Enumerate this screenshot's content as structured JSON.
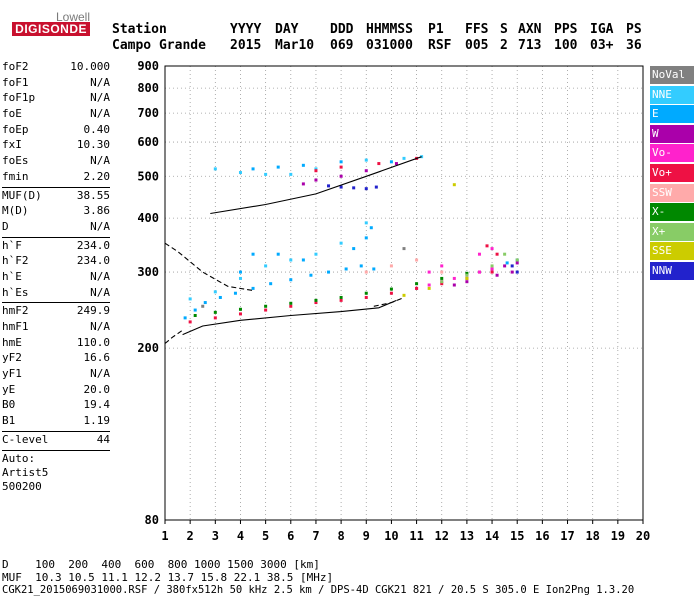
{
  "logo": {
    "line1": "Lowell",
    "line2": "DIGISONDE"
  },
  "header": {
    "labels": [
      "Station",
      "YYYY",
      "DAY",
      "DDD",
      "HHMMSS",
      "P1",
      "FFS",
      "S",
      "AXN",
      "PPS",
      "IGA",
      "PS"
    ],
    "values": [
      "Campo Grande",
      "2015",
      "Mar10",
      "069",
      "031000",
      "RSF",
      "005",
      "2",
      "713",
      "100",
      "03+",
      "36"
    ]
  },
  "params": [
    [
      {
        "label": "foF2",
        "value": "10.000"
      },
      {
        "label": "foF1",
        "value": "N/A"
      },
      {
        "label": "foF1p",
        "value": "N/A"
      },
      {
        "label": "foE",
        "value": "N/A"
      },
      {
        "label": "foEp",
        "value": "0.40"
      },
      {
        "label": "fxI",
        "value": "10.30"
      },
      {
        "label": "foEs",
        "value": "N/A"
      },
      {
        "label": "fmin",
        "value": "2.20"
      }
    ],
    [
      {
        "label": "MUF(D)",
        "value": "38.55"
      },
      {
        "label": "M(D)",
        "value": "3.86"
      },
      {
        "label": "D",
        "value": "N/A"
      }
    ],
    [
      {
        "label": "h`F",
        "value": "234.0"
      },
      {
        "label": "h`F2",
        "value": "234.0"
      },
      {
        "label": "h`E",
        "value": "N/A"
      },
      {
        "label": "h`Es",
        "value": "N/A"
      }
    ],
    [
      {
        "label": "hmF2",
        "value": "249.9"
      },
      {
        "label": "hmF1",
        "value": "N/A"
      },
      {
        "label": "hmE",
        "value": "110.0"
      },
      {
        "label": "yF2",
        "value": "16.6"
      },
      {
        "label": "yF1",
        "value": "N/A"
      },
      {
        "label": "yE",
        "value": "20.0"
      },
      {
        "label": "B0",
        "value": "19.4"
      },
      {
        "label": "B1",
        "value": "1.19"
      }
    ],
    [
      {
        "label": "C-level",
        "value": "44"
      }
    ]
  ],
  "auto": [
    "Auto:",
    "Artist5",
    "500200"
  ],
  "legend": [
    {
      "label": "NoVal",
      "color": "#808080"
    },
    {
      "label": "NNE",
      "color": "#33ccff"
    },
    {
      "label": "E",
      "color": "#00aaff"
    },
    {
      "label": "W",
      "color": "#aa00aa"
    },
    {
      "label": "Vo-",
      "color": "#ff22cc"
    },
    {
      "label": "Vo+",
      "color": "#ee1144"
    },
    {
      "label": "SSW",
      "color": "#ffaaaa"
    },
    {
      "label": "X-",
      "color": "#008800"
    },
    {
      "label": "X+",
      "color": "#88cc66"
    },
    {
      "label": "SSE",
      "color": "#cccc00"
    },
    {
      "label": "NNW",
      "color": "#2222cc"
    }
  ],
  "bottom": {
    "line1": "D    100  200  400  600  800 1000 1500 3000 [km]",
    "line2": "MUF  10.3 10.5 11.1 12.2 13.7 15.8 22.1 38.5 [MHz]",
    "line3": "CGK21_2015069031000.RSF / 380fx512h 50 kHz 2.5 km / DPS-4D CGK21 821 / 20.5 S 305.0 E Ion2Png 1.3.20"
  },
  "chart_data": {
    "type": "scatter",
    "title": "",
    "xlabel": "",
    "ylabel": "",
    "xlim": [
      1,
      20
    ],
    "ylim": [
      80,
      900
    ],
    "yscale": "log",
    "x_ticks": [
      1,
      2,
      3,
      4,
      5,
      6,
      7,
      8,
      9,
      10,
      11,
      12,
      13,
      14,
      15,
      16,
      17,
      18,
      19,
      20
    ],
    "y_ticks": [
      80,
      200,
      300,
      400,
      500,
      600,
      700,
      800,
      900
    ],
    "grid": true,
    "legend_position": "right",
    "series": [
      {
        "name": "E",
        "color": "#00aaff",
        "points": [
          [
            1.8,
            235
          ],
          [
            2.2,
            245
          ],
          [
            2.6,
            255
          ],
          [
            3.2,
            262
          ],
          [
            3.8,
            268
          ],
          [
            4.5,
            275
          ],
          [
            5.2,
            282
          ],
          [
            6,
            288
          ],
          [
            6.8,
            295
          ],
          [
            7.5,
            300
          ],
          [
            8.2,
            305
          ],
          [
            8.8,
            310
          ],
          [
            9.3,
            305
          ],
          [
            4,
            300
          ],
          [
            4.5,
            330
          ],
          [
            5.5,
            330
          ],
          [
            6.5,
            320
          ],
          [
            8.5,
            340
          ],
          [
            9,
            360
          ],
          [
            9.2,
            380
          ],
          [
            4.5,
            520
          ],
          [
            5.5,
            525
          ],
          [
            6.5,
            530
          ],
          [
            8,
            540
          ],
          [
            10,
            540
          ],
          [
            14.6,
            315
          ],
          [
            15,
            320
          ]
        ]
      },
      {
        "name": "NNE",
        "color": "#33ccff",
        "points": [
          [
            2,
            260
          ],
          [
            3,
            270
          ],
          [
            4,
            290
          ],
          [
            5,
            310
          ],
          [
            6,
            320
          ],
          [
            7,
            330
          ],
          [
            8,
            350
          ],
          [
            9,
            390
          ],
          [
            3,
            520
          ],
          [
            4,
            510
          ],
          [
            5,
            505
          ],
          [
            6,
            505
          ],
          [
            7,
            520
          ],
          [
            9,
            545
          ],
          [
            10.5,
            550
          ],
          [
            11.2,
            555
          ]
        ]
      },
      {
        "name": "W",
        "color": "#aa00aa",
        "points": [
          [
            13.5,
            300
          ],
          [
            14,
            305
          ],
          [
            14.5,
            310
          ],
          [
            15,
            315
          ],
          [
            14.2,
            295
          ],
          [
            14.8,
            300
          ],
          [
            13,
            285
          ],
          [
            12.5,
            280
          ],
          [
            6.5,
            480
          ],
          [
            7,
            490
          ],
          [
            8,
            500
          ],
          [
            9,
            515
          ],
          [
            10.2,
            535
          ]
        ]
      },
      {
        "name": "Vo-",
        "color": "#ff22cc",
        "points": [
          [
            11,
            275
          ],
          [
            11.5,
            280
          ],
          [
            12,
            285
          ],
          [
            12.5,
            290
          ],
          [
            13,
            295
          ],
          [
            13.5,
            300
          ],
          [
            14,
            305
          ],
          [
            11.5,
            300
          ],
          [
            12,
            310
          ],
          [
            13.5,
            330
          ],
          [
            14,
            340
          ]
        ]
      },
      {
        "name": "Vo+",
        "color": "#ee1144",
        "points": [
          [
            2,
            230
          ],
          [
            3,
            235
          ],
          [
            4,
            240
          ],
          [
            5,
            245
          ],
          [
            6,
            250
          ],
          [
            7,
            255
          ],
          [
            8,
            258
          ],
          [
            9,
            262
          ],
          [
            10,
            268
          ],
          [
            11,
            275
          ],
          [
            12,
            282
          ],
          [
            13,
            290
          ],
          [
            14,
            300
          ],
          [
            14.2,
            330
          ],
          [
            13.8,
            345
          ],
          [
            7,
            515
          ],
          [
            8,
            525
          ],
          [
            9.5,
            535
          ],
          [
            11,
            550
          ]
        ]
      },
      {
        "name": "SSW",
        "color": "#ffaaaa",
        "points": [
          [
            9,
            300
          ],
          [
            10,
            310
          ],
          [
            11,
            320
          ],
          [
            12,
            300
          ]
        ]
      },
      {
        "name": "X-",
        "color": "#008800",
        "points": [
          [
            2.2,
            238
          ],
          [
            3,
            242
          ],
          [
            4,
            246
          ],
          [
            5,
            250
          ],
          [
            6,
            254
          ],
          [
            7,
            258
          ],
          [
            8,
            262
          ],
          [
            9,
            268
          ],
          [
            10,
            274
          ],
          [
            11,
            282
          ],
          [
            12,
            290
          ],
          [
            13,
            298
          ]
        ]
      },
      {
        "name": "X+",
        "color": "#88cc66",
        "points": [
          [
            12,
            285
          ],
          [
            13,
            295
          ],
          [
            14,
            310
          ],
          [
            15,
            320
          ],
          [
            14.5,
            330
          ]
        ]
      },
      {
        "name": "SSE",
        "color": "#cccc00",
        "points": [
          [
            10.5,
            265
          ],
          [
            11.5,
            275
          ],
          [
            12.5,
            478
          ],
          [
            13,
            290
          ]
        ]
      },
      {
        "name": "NNW",
        "color": "#2222cc",
        "points": [
          [
            7.5,
            475
          ],
          [
            8,
            472
          ],
          [
            8.5,
            470
          ],
          [
            9,
            468
          ],
          [
            9.4,
            472
          ],
          [
            15,
            300
          ],
          [
            14.8,
            310
          ]
        ]
      },
      {
        "name": "NoVal",
        "color": "#808080",
        "points": [
          [
            2.5,
            250
          ],
          [
            10.5,
            340
          ]
        ]
      }
    ],
    "traces": [
      {
        "name": "virtual-height-trace",
        "color": "#000000",
        "style": "solid",
        "points": [
          [
            1.7,
            215
          ],
          [
            2.5,
            225
          ],
          [
            4,
            232
          ],
          [
            6,
            238
          ],
          [
            8,
            243
          ],
          [
            9.5,
            248
          ],
          [
            10.2,
            258
          ]
        ]
      },
      {
        "name": "o-trace-upper",
        "color": "#000000",
        "style": "solid",
        "points": [
          [
            2.8,
            410
          ],
          [
            5,
            430
          ],
          [
            7,
            455
          ],
          [
            9,
            500
          ],
          [
            11.2,
            555
          ]
        ]
      },
      {
        "name": "profile-top",
        "color": "#000000",
        "style": "dashed",
        "points": [
          [
            1,
            350
          ],
          [
            1.5,
            335
          ],
          [
            2.5,
            300
          ],
          [
            3.5,
            278
          ],
          [
            4.5,
            272
          ]
        ]
      },
      {
        "name": "profile-bottom",
        "color": "#000000",
        "style": "dashed",
        "points": [
          [
            1,
            205
          ],
          [
            1.3,
            212
          ],
          [
            1.7,
            220
          ]
        ]
      },
      {
        "name": "lower-trace-end",
        "color": "#000000",
        "style": "dashed",
        "points": [
          [
            9.3,
            250
          ],
          [
            10,
            255
          ],
          [
            10.5,
            262
          ]
        ]
      }
    ]
  }
}
